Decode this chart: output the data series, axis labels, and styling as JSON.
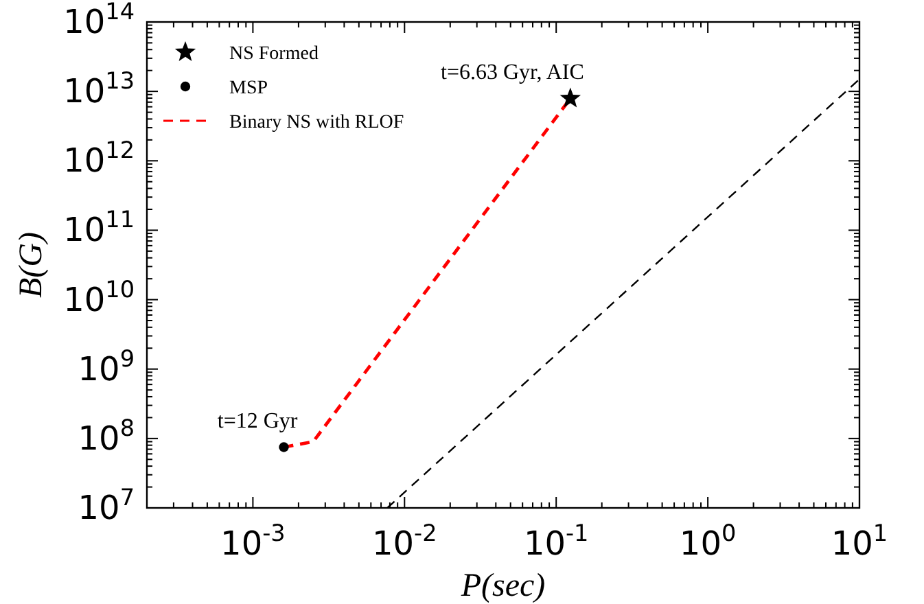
{
  "chart_data": {
    "type": "line",
    "xlabel": "P(sec)",
    "ylabel": "B(G)",
    "log": "xy",
    "xlim": [
      0.0002,
      10
    ],
    "ylim": [
      10000000,
      100000000000000
    ],
    "xticks": [
      {
        "value": 0.001,
        "label": "10$^{-3}$"
      },
      {
        "value": 0.01,
        "label": "10$^{-2}$"
      },
      {
        "value": 0.1,
        "label": "10$^{-1}$"
      },
      {
        "value": 1,
        "label": "10$^{0}$"
      },
      {
        "value": 10,
        "label": "10$^{1}$"
      }
    ],
    "yticks": [
      {
        "value": 10000000,
        "label": "10$^{7}$"
      },
      {
        "value": 100000000,
        "label": "10$^{8}$"
      },
      {
        "value": 1000000000,
        "label": "10$^{9}$"
      },
      {
        "value": 10000000000,
        "label": "10$^{10}$"
      },
      {
        "value": 100000000000,
        "label": "10$^{11}$"
      },
      {
        "value": 1000000000000,
        "label": "10$^{12}$"
      },
      {
        "value": 10000000000000,
        "label": "10$^{13}$"
      },
      {
        "value": 100000000000000,
        "label": "10$^{14}$"
      }
    ],
    "grid": false,
    "legend": "top left",
    "series": [
      {
        "name": "NS Formed",
        "type": "scatter",
        "marker": "star",
        "color": "#000000",
        "x": [
          0.124
        ],
        "values": [
          7900000000000
        ]
      },
      {
        "name": "MSP",
        "type": "scatter",
        "marker": "circle",
        "color": "#000000",
        "x": [
          0.0016
        ],
        "values": [
          75000000
        ]
      },
      {
        "name": "Binary NS with RLOF",
        "line_style": "dashed",
        "color": "#ff0000",
        "x": [
          0.0016,
          0.0025,
          0.124
        ],
        "values": [
          75000000,
          90000000,
          7900000000000
        ]
      },
      {
        "line_style": "dashed",
        "color": "#000000",
        "x": [
          0.0077,
          10
        ],
        "values": [
          10000000,
          15000000000000
        ]
      }
    ],
    "annotations": [
      {
        "text": "t=6.63 Gyr, AIC",
        "x": 0.124,
        "y": 7900000000000
      },
      {
        "text": "t=12 Gyr",
        "x": 0.0016,
        "y": 75000000
      }
    ]
  }
}
